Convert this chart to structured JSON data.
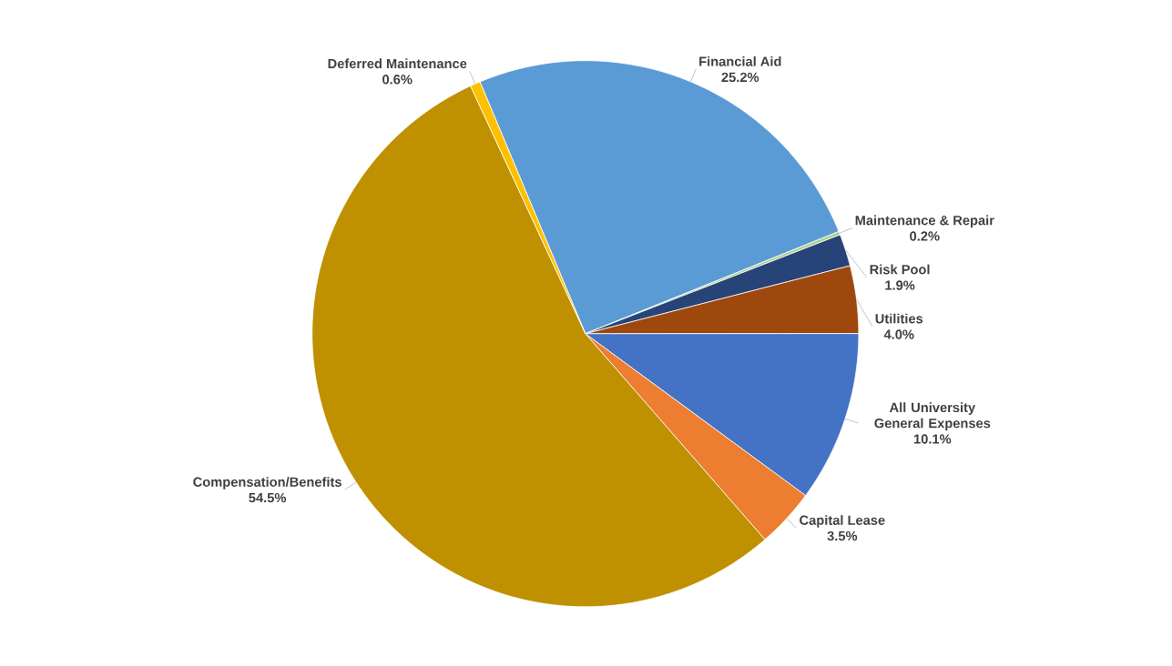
{
  "chart_data": {
    "type": "pie",
    "categories": [
      "Financial Aid",
      "Maintenance & Repair",
      "Risk Pool",
      "Utilities",
      "All University General Expenses",
      "Capital Lease",
      "Compensation/Benefits",
      "Deferred Maintenance"
    ],
    "values": [
      25.2,
      0.2,
      1.9,
      4.0,
      10.1,
      3.5,
      54.5,
      0.6
    ],
    "value_labels": [
      "25.2%",
      "0.2%",
      "1.9%",
      "4.0%",
      "10.1%",
      "3.5%",
      "54.5%",
      "0.6%"
    ],
    "colors": [
      "#5b9bd5",
      "#a9d18e",
      "#264478",
      "#9e480e",
      "#4472c4",
      "#ed7d31",
      "#bf9000",
      "#ffc000"
    ]
  }
}
